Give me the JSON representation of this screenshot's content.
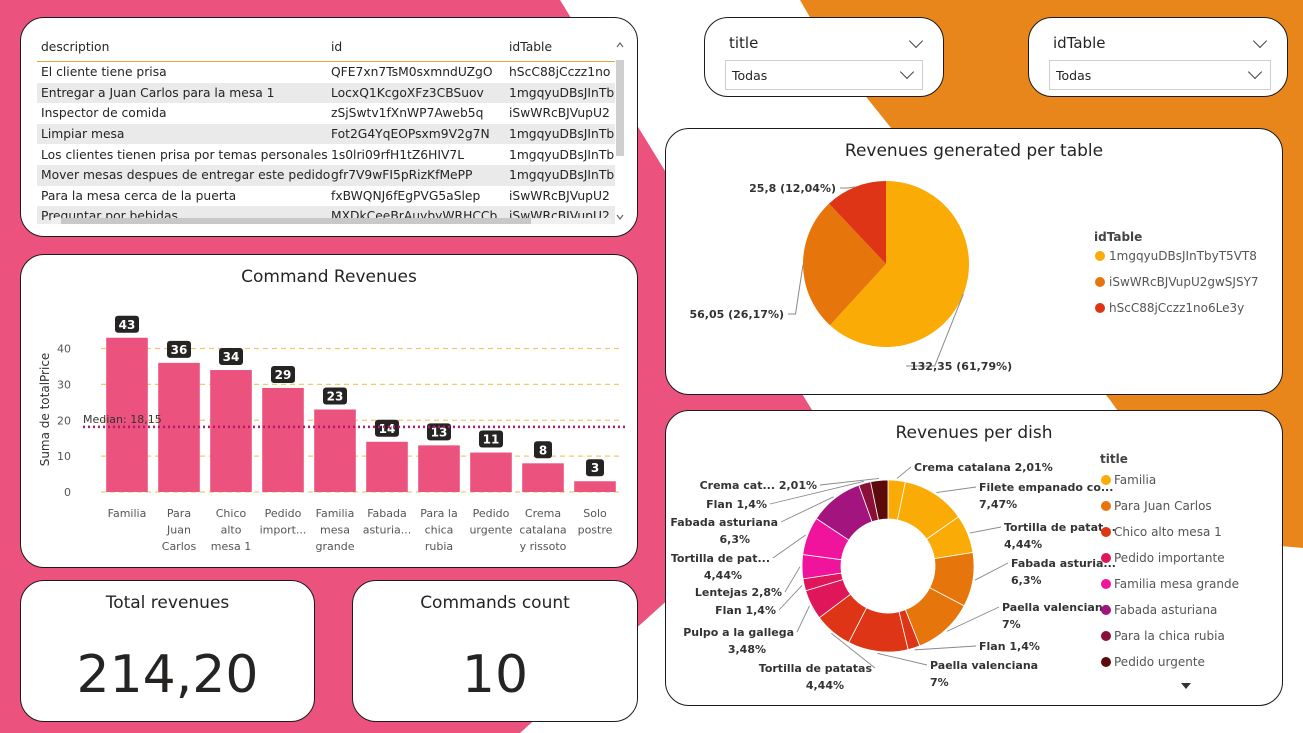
{
  "colors": {
    "pink_bg": "#eb527e",
    "orange_bg": "#e8861c",
    "bar": "#eb527e",
    "orange_dark": "#e6760b",
    "orange_light": "#fbab05",
    "red": "#dd3515"
  },
  "table": {
    "headers": [
      "description",
      "id",
      "idTable"
    ],
    "rows": [
      [
        "El cliente tiene prisa",
        "QFE7xn7TsM0sxmndUZgO",
        "hScC88jCczz1no"
      ],
      [
        "Entregar a Juan Carlos para la mesa 1",
        "LocxQ1KcgoXFz3CBSuov",
        "1mgqyuDBsJInTb"
      ],
      [
        "Inspector de comida",
        "zSjSwtv1fXnWP7Aweb5q",
        "iSwWRcBJVupU2"
      ],
      [
        "Limpiar mesa",
        "Fot2G4YqEOPsxm9V2g7N",
        "1mgqyuDBsJInTb"
      ],
      [
        "Los clientes tienen prisa por temas personales",
        "1s0lri09rfH1tZ6HIV7L",
        "1mgqyuDBsJInTb"
      ],
      [
        "Mover mesas despues de entregar este pedido",
        "gfr7V9wFI5pRizKfMePP",
        "1mgqyuDBsJInTb"
      ],
      [
        "Para la mesa cerca de la puerta",
        "fxBWQNJ6fEgPVG5aSlep",
        "iSwWRcBJVupU2"
      ],
      [
        "Preguntar por bebidas",
        "MXDkCeeBrAuybyWRHCCb",
        "iSwWRcBJVupU2"
      ]
    ]
  },
  "slicers": {
    "title": {
      "label": "title",
      "value": "Todas"
    },
    "idTable": {
      "label": "idTable",
      "value": "Todas"
    }
  },
  "kpis": {
    "total_revenues": {
      "label": "Total revenues",
      "value": "214,20"
    },
    "commands_count": {
      "label": "Commands count",
      "value": "10"
    }
  },
  "chart_data": [
    {
      "type": "bar",
      "title": "Command Revenues",
      "ylabel": "Suma de totalPrice",
      "xlabel": "",
      "categories": [
        [
          "Familia"
        ],
        [
          "Para",
          "Juan",
          "Carlos"
        ],
        [
          "Chico",
          "alto",
          "mesa 1"
        ],
        [
          "Pedido",
          "import..."
        ],
        [
          "Familia",
          "mesa",
          "grande"
        ],
        [
          "Fabada",
          "asturia..."
        ],
        [
          "Para la",
          "chica",
          "rubia"
        ],
        [
          "Pedido",
          "urgente"
        ],
        [
          "Crema",
          "catalana",
          "y rissoto"
        ],
        [
          "Solo",
          "postre"
        ]
      ],
      "values": [
        43,
        36,
        34,
        29,
        23,
        14,
        13,
        11,
        8,
        3
      ],
      "data_labels": [
        "43",
        "36",
        "34",
        "29",
        "23",
        "14",
        "13",
        "11",
        "8",
        "3"
      ],
      "yticks": [
        0,
        10,
        20,
        30,
        40
      ],
      "ylim": [
        0,
        46
      ],
      "median": 18.15,
      "median_label": "Median: 18,15"
    },
    {
      "type": "pie",
      "title": "Revenues generated per table",
      "legend_title": "idTable",
      "labels": [
        "1mgqyuDBsJInTbyT5VT8",
        "iSwWRcBJVupU2gwSJSY7",
        "hScC88jCczz1no6Le3y"
      ],
      "values": [
        132.35,
        56.05,
        25.8
      ],
      "data_labels": [
        "132,35 (61,79%)",
        "56,05 (26,17%)",
        "25,8 (12,04%)"
      ],
      "colors": [
        "#fbab05",
        "#e6760b",
        "#dd3515"
      ]
    },
    {
      "type": "pie",
      "title": "Revenues per dish",
      "legend_title": "title",
      "legend": [
        {
          "label": "Familia",
          "color": "#fbab05"
        },
        {
          "label": "Para Juan Carlos",
          "color": "#e6760b"
        },
        {
          "label": "Chico alto mesa 1",
          "color": "#dd3515"
        },
        {
          "label": "Pedido importante",
          "color": "#e0165a"
        },
        {
          "label": "Familia mesa grande",
          "color": "#f0139c"
        },
        {
          "label": "Fabada asturiana",
          "color": "#a3147f"
        },
        {
          "label": "Para la chica rubia",
          "color": "#8a1038"
        },
        {
          "label": "Pedido urgente",
          "color": "#5c0a0a"
        }
      ],
      "segments": [
        {
          "name": "Crema catalana",
          "percent": 2.01,
          "color": "#fbab05"
        },
        {
          "name": "Filete empanado con patatas",
          "percent": 7.47,
          "color": "#fbab05"
        },
        {
          "name": "Tortilla de patatas",
          "percent": 4.44,
          "color": "#fbab05"
        },
        {
          "name": "Fabada asturiana",
          "percent": 6.3,
          "color": "#e6760b"
        },
        {
          "name": "Paella valenciana",
          "percent": 7,
          "color": "#e6760b"
        },
        {
          "name": "Flan",
          "percent": 1.4,
          "color": "#dd3515"
        },
        {
          "name": "Paella valenciana",
          "percent": 7,
          "color": "#dd3515"
        },
        {
          "name": "Tortilla de patatas",
          "percent": 4.44,
          "color": "#dd3515"
        },
        {
          "name": "Pulpo a la gallega",
          "percent": 3.48,
          "color": "#e0165a"
        },
        {
          "name": "Flan",
          "percent": 1.4,
          "color": "#e0165a"
        },
        {
          "name": "Lentejas",
          "percent": 2.8,
          "color": "#f0139c"
        },
        {
          "name": "Tortilla de patatas",
          "percent": 4.44,
          "color": "#f0139c"
        },
        {
          "name": "Fabada asturiana",
          "percent": 6.3,
          "color": "#a3147f"
        },
        {
          "name": "Flan",
          "percent": 1.4,
          "color": "#8a1038"
        },
        {
          "name": "Crema catalana",
          "percent": 2.01,
          "color": "#5c0a0a"
        }
      ],
      "data_labels": [
        {
          "name": "Crema catalana 2,01%"
        },
        {
          "name": "Filete empanado co...",
          "pct": "7,47%"
        },
        {
          "name": "Tortilla de patat...",
          "pct": "4,44%"
        },
        {
          "name": "Fabada asturia...",
          "pct": "6,3%"
        },
        {
          "name": "Paella valenciana",
          "pct": "7%"
        },
        {
          "name": "Flan 1,4%"
        },
        {
          "name": "Paella valenciana",
          "pct": "7%"
        },
        {
          "name": "Tortilla de patatas",
          "pct": "4,44%"
        },
        {
          "name": "Pulpo a la gallega",
          "pct": "3,48%"
        },
        {
          "name": "Flan 1,4%"
        },
        {
          "name": "Lentejas 2,8%"
        },
        {
          "name": "Tortilla de pat...",
          "pct": "4,44%"
        },
        {
          "name": "Fabada asturiana",
          "pct": "6,3%"
        },
        {
          "name": "Flan 1,4%"
        },
        {
          "name": "Crema cat... 2,01%"
        }
      ]
    }
  ]
}
